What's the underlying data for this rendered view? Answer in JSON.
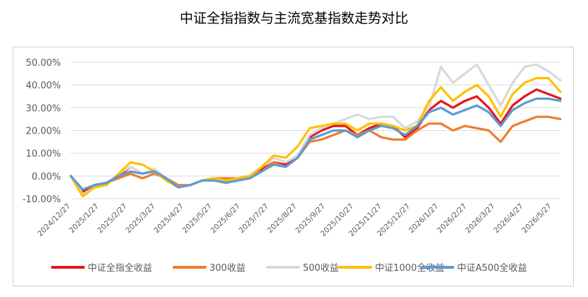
{
  "title": "中证全指指数与主流宽基指数走势对比",
  "chart_data": {
    "type": "line",
    "title": "中证全指指数与主流宽基指数走势对比",
    "xlabel": "",
    "ylabel": "",
    "ylim": [
      -10,
      50
    ],
    "y_ticks": [
      "50.00%",
      "40.00%",
      "30.00%",
      "20.00%",
      "10.00%",
      "0.00%",
      "-10.00%"
    ],
    "y_tick_values": [
      50,
      40,
      30,
      20,
      10,
      0,
      -10
    ],
    "x_ticks": [
      "2024/12/27",
      "2025/1/27",
      "2025/2/27",
      "2025/3/27",
      "2025/4/27",
      "2025/5/27",
      "2025/6/27",
      "2025/7/27",
      "2025/8/27",
      "2025/9/27",
      "2025/10/27",
      "2025/11/27",
      "2025/12/27",
      "2026/1/27",
      "2026/2/27",
      "2026/3/27",
      "2026/4/27",
      "2026/5/27"
    ],
    "grid": true,
    "legend_position": "bottom",
    "series": [
      {
        "name": "中证全指全收益",
        "color": "#e8141b",
        "values": [
          0,
          -7,
          -4,
          -3,
          0,
          4,
          1,
          3,
          -1,
          -5,
          -4,
          -2,
          -1,
          -2,
          -1,
          0,
          3,
          6,
          5,
          9,
          17,
          20,
          22,
          22,
          18,
          21,
          23,
          22,
          17,
          21,
          29,
          33,
          30,
          33,
          35,
          30,
          23,
          31,
          35,
          38,
          36,
          34
        ]
      },
      {
        "name": "300收益",
        "color": "#ed7d31",
        "values": [
          0,
          -6,
          -4,
          -3,
          -1,
          1,
          -1,
          1,
          -1,
          -4,
          -4,
          -2,
          -1,
          -1,
          -1,
          0,
          2,
          6,
          4,
          8,
          15,
          16,
          18,
          20,
          18,
          20,
          17,
          16,
          16,
          20,
          23,
          23,
          20,
          22,
          21,
          20,
          15,
          22,
          24,
          26,
          26,
          25
        ]
      },
      {
        "name": "500收益",
        "color": "#d9d9d9",
        "values": [
          0,
          -8,
          -5,
          -4,
          1,
          4,
          1,
          3,
          -1,
          -5,
          -4,
          -2,
          -2,
          -2,
          -1,
          0,
          4,
          8,
          6,
          9,
          18,
          21,
          23,
          25,
          27,
          25,
          26,
          26,
          21,
          24,
          30,
          48,
          41,
          45,
          49,
          40,
          31,
          41,
          48,
          49,
          46,
          42
        ]
      },
      {
        "name": "中证1000全收益",
        "color": "#ffc000",
        "values": [
          0,
          -9,
          -5,
          -4,
          1,
          6,
          5,
          2,
          -2,
          -5,
          -4,
          -2,
          -1,
          -2,
          -1,
          0,
          4,
          9,
          8,
          13,
          21,
          22,
          23,
          23,
          20,
          23,
          23,
          22,
          20,
          22,
          33,
          39,
          33,
          37,
          40,
          35,
          26,
          36,
          41,
          43,
          43,
          37
        ]
      },
      {
        "name": "中证A500全收益",
        "color": "#5b9bd5",
        "values": [
          0,
          -6,
          -4,
          -3,
          0,
          2,
          1,
          2,
          -1,
          -5,
          -4,
          -2,
          -2,
          -3,
          -2,
          -1,
          2,
          5,
          4,
          8,
          16,
          18,
          20,
          20,
          17,
          20,
          22,
          21,
          18,
          22,
          28,
          30,
          27,
          29,
          31,
          28,
          22,
          29,
          32,
          34,
          34,
          33
        ]
      }
    ]
  }
}
